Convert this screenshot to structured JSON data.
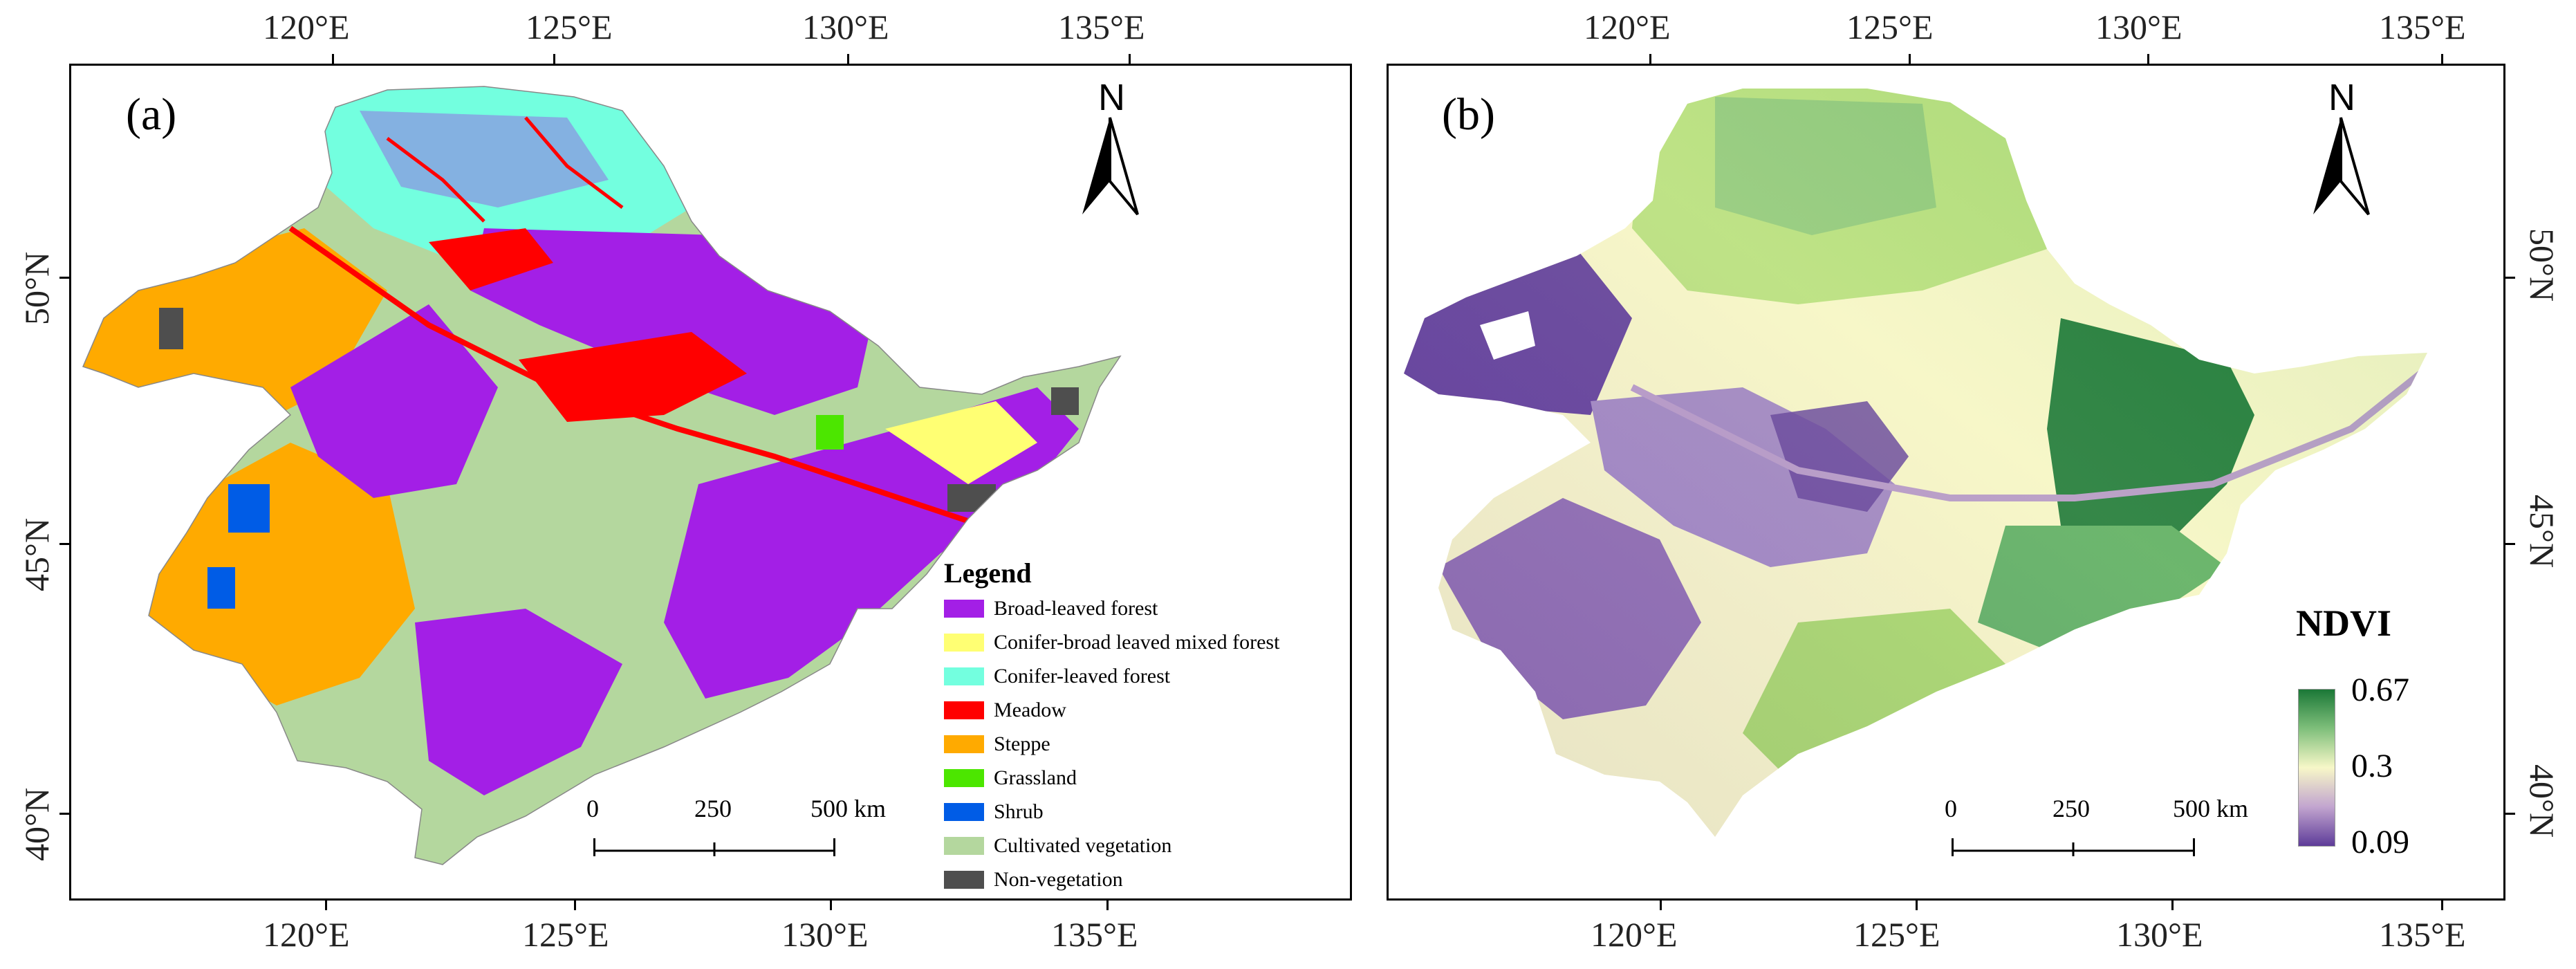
{
  "panel_a": {
    "label": "(a)",
    "north_label": "N",
    "top_axis": [
      "120°E",
      "125°E",
      "130°E",
      "135°E"
    ],
    "bottom_axis": [
      "120°E",
      "125°E",
      "130°E",
      "135°E"
    ],
    "left_axis": [
      "50°N",
      "45°N",
      "40°N"
    ],
    "scale_bar": {
      "labels": [
        "0",
        "250",
        "500 km"
      ]
    },
    "legend": {
      "title": "Legend",
      "items": [
        {
          "label": "Broad-leaved forest",
          "color": "#a31fe6"
        },
        {
          "label": "Conifer-broad leaved mixed forest",
          "color": "#ffff73"
        },
        {
          "label": "Conifer-leaved forest",
          "color": "#73ffdf"
        },
        {
          "label": "Meadow",
          "color": "#ff0000"
        },
        {
          "label": "Steppe",
          "color": "#ffaa00"
        },
        {
          "label": "Grassland",
          "color": "#4ce600"
        },
        {
          "label": "Shrub",
          "color": "#005ce6"
        },
        {
          "label": "Cultivated vegetation",
          "color": "#b4d79e"
        },
        {
          "label": "Non-vegetation",
          "color": "#4e4e4e"
        }
      ]
    }
  },
  "panel_b": {
    "label": "(b)",
    "north_label": "N",
    "top_axis": [
      "120°E",
      "125°E",
      "130°E",
      "135°E"
    ],
    "bottom_axis": [
      "120°E",
      "125°E",
      "130°E",
      "135°E"
    ],
    "right_axis": [
      "50°N",
      "45°N",
      "40°N"
    ],
    "scale_bar": {
      "labels": [
        "0",
        "250",
        "500 km"
      ]
    },
    "colorbar": {
      "title": "NDVI",
      "max_label": "0.67",
      "mid_label": "0.3",
      "min_label": "0.09",
      "colors": [
        "#1b7837",
        "#7fbf7b",
        "#f7f7c8",
        "#c2a5cf",
        "#5e3c99"
      ]
    }
  }
}
